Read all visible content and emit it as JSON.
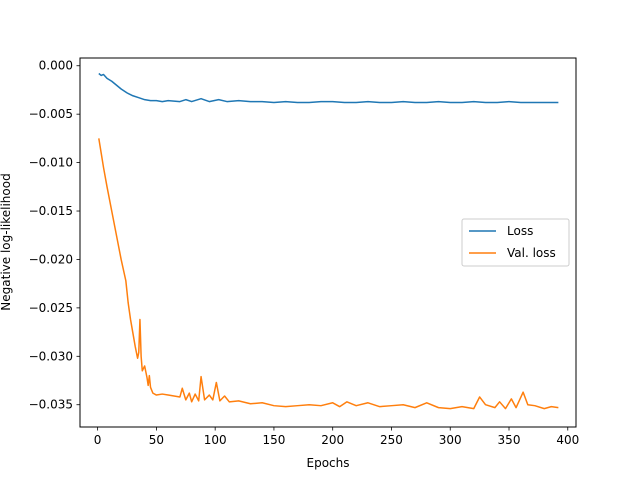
{
  "chart_data": {
    "type": "line",
    "title": "",
    "xlabel": "Epochs",
    "ylabel": "Negative log-likelihood",
    "xlim": [
      -15,
      407
    ],
    "ylim": [
      -0.0373,
      0.0008
    ],
    "xticks": [
      0,
      50,
      100,
      150,
      200,
      250,
      300,
      350,
      400
    ],
    "yticks": [
      0.0,
      -0.005,
      -0.01,
      -0.015,
      -0.02,
      -0.025,
      -0.03,
      -0.035
    ],
    "ytick_labels": [
      "0.000",
      "−0.005",
      "−0.010",
      "−0.015",
      "−0.020",
      "−0.025",
      "−0.030",
      "−0.035"
    ],
    "grid": false,
    "legend": {
      "position": "center-right"
    },
    "series": [
      {
        "name": "Loss",
        "color": "#1f77b4",
        "points": [
          [
            1,
            -0.0008
          ],
          [
            3,
            -0.001
          ],
          [
            5,
            -0.0009
          ],
          [
            8,
            -0.0013
          ],
          [
            12,
            -0.0016
          ],
          [
            16,
            -0.002
          ],
          [
            20,
            -0.0024
          ],
          [
            25,
            -0.0028
          ],
          [
            30,
            -0.0031
          ],
          [
            35,
            -0.0033
          ],
          [
            40,
            -0.0035
          ],
          [
            45,
            -0.0036
          ],
          [
            50,
            -0.0036
          ],
          [
            55,
            -0.0037
          ],
          [
            60,
            -0.0036
          ],
          [
            70,
            -0.0037
          ],
          [
            75,
            -0.0035
          ],
          [
            80,
            -0.0037
          ],
          [
            88,
            -0.0034
          ],
          [
            95,
            -0.0037
          ],
          [
            103,
            -0.0035
          ],
          [
            110,
            -0.0037
          ],
          [
            120,
            -0.0036
          ],
          [
            130,
            -0.0037
          ],
          [
            140,
            -0.0037
          ],
          [
            150,
            -0.0038
          ],
          [
            160,
            -0.0037
          ],
          [
            170,
            -0.0038
          ],
          [
            180,
            -0.0038
          ],
          [
            190,
            -0.0037
          ],
          [
            200,
            -0.0037
          ],
          [
            210,
            -0.0038
          ],
          [
            220,
            -0.0038
          ],
          [
            230,
            -0.0037
          ],
          [
            240,
            -0.0038
          ],
          [
            250,
            -0.0038
          ],
          [
            260,
            -0.0037
          ],
          [
            270,
            -0.0038
          ],
          [
            280,
            -0.0038
          ],
          [
            290,
            -0.0037
          ],
          [
            300,
            -0.0038
          ],
          [
            310,
            -0.0038
          ],
          [
            320,
            -0.0037
          ],
          [
            330,
            -0.0038
          ],
          [
            340,
            -0.0038
          ],
          [
            350,
            -0.0037
          ],
          [
            360,
            -0.0038
          ],
          [
            370,
            -0.0038
          ],
          [
            380,
            -0.0038
          ],
          [
            392,
            -0.0038
          ]
        ]
      },
      {
        "name": "Val. loss",
        "color": "#ff7f0e",
        "points": [
          [
            1,
            -0.0075
          ],
          [
            3,
            -0.009
          ],
          [
            5,
            -0.0105
          ],
          [
            8,
            -0.0125
          ],
          [
            12,
            -0.015
          ],
          [
            16,
            -0.0175
          ],
          [
            20,
            -0.02
          ],
          [
            24,
            -0.0222
          ],
          [
            26,
            -0.0245
          ],
          [
            28,
            -0.0262
          ],
          [
            30,
            -0.0276
          ],
          [
            32,
            -0.029
          ],
          [
            34,
            -0.0302
          ],
          [
            35,
            -0.0296
          ],
          [
            36,
            -0.0262
          ],
          [
            37,
            -0.03
          ],
          [
            38,
            -0.0315
          ],
          [
            40,
            -0.031
          ],
          [
            42,
            -0.0322
          ],
          [
            43,
            -0.033
          ],
          [
            44,
            -0.032
          ],
          [
            45,
            -0.0332
          ],
          [
            47,
            -0.0338
          ],
          [
            50,
            -0.034
          ],
          [
            55,
            -0.0339
          ],
          [
            60,
            -0.034
          ],
          [
            65,
            -0.0341
          ],
          [
            70,
            -0.0342
          ],
          [
            72,
            -0.0333
          ],
          [
            75,
            -0.0345
          ],
          [
            78,
            -0.0338
          ],
          [
            80,
            -0.0347
          ],
          [
            83,
            -0.0339
          ],
          [
            86,
            -0.0346
          ],
          [
            88,
            -0.0321
          ],
          [
            91,
            -0.0345
          ],
          [
            95,
            -0.034
          ],
          [
            98,
            -0.0345
          ],
          [
            101,
            -0.0327
          ],
          [
            104,
            -0.0346
          ],
          [
            108,
            -0.0341
          ],
          [
            112,
            -0.0347
          ],
          [
            120,
            -0.0346
          ],
          [
            130,
            -0.0349
          ],
          [
            140,
            -0.0348
          ],
          [
            150,
            -0.0351
          ],
          [
            160,
            -0.0352
          ],
          [
            170,
            -0.0351
          ],
          [
            180,
            -0.035
          ],
          [
            190,
            -0.0351
          ],
          [
            200,
            -0.0348
          ],
          [
            206,
            -0.0352
          ],
          [
            212,
            -0.0347
          ],
          [
            220,
            -0.0351
          ],
          [
            230,
            -0.0348
          ],
          [
            240,
            -0.0352
          ],
          [
            250,
            -0.0351
          ],
          [
            260,
            -0.035
          ],
          [
            270,
            -0.0353
          ],
          [
            280,
            -0.0348
          ],
          [
            290,
            -0.0353
          ],
          [
            300,
            -0.0354
          ],
          [
            310,
            -0.0352
          ],
          [
            320,
            -0.0354
          ],
          [
            325,
            -0.0342
          ],
          [
            330,
            -0.035
          ],
          [
            338,
            -0.0353
          ],
          [
            342,
            -0.0347
          ],
          [
            347,
            -0.0354
          ],
          [
            352,
            -0.0344
          ],
          [
            356,
            -0.0353
          ],
          [
            362,
            -0.0337
          ],
          [
            366,
            -0.035
          ],
          [
            372,
            -0.0351
          ],
          [
            380,
            -0.0354
          ],
          [
            386,
            -0.0352
          ],
          [
            392,
            -0.0353
          ]
        ]
      }
    ]
  }
}
